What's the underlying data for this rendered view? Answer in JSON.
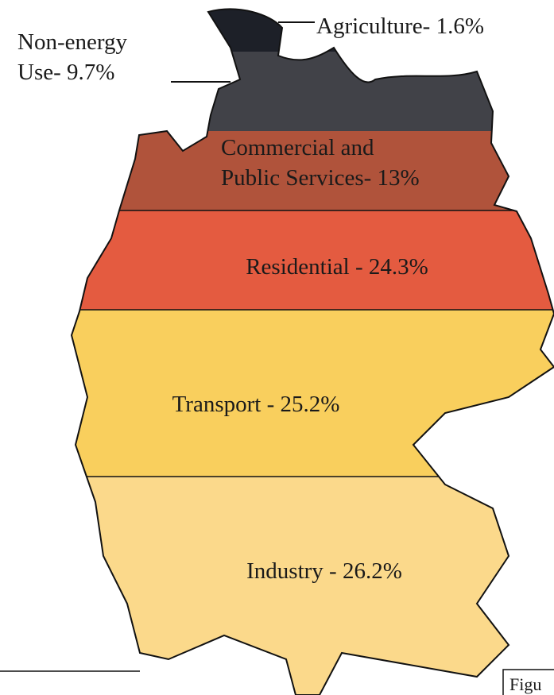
{
  "chart_data": {
    "type": "banded-map",
    "values": [
      1.6,
      9.7,
      13,
      24.3,
      25.2,
      26.2
    ],
    "value_labels": [
      "Agriculture- 1.6%",
      "Non-energy\nUse- 9.7%",
      "Commercial and\nPublic Services- 13%",
      "Residential - 24.3%",
      "Transport - 25.2%",
      "Industry - 26.2%"
    ],
    "colors": [
      "#1d2028",
      "#414248",
      "#b0533b",
      "#e45b40",
      "#f9cf5d",
      "#fbd98b"
    ],
    "caption": "Figu"
  }
}
